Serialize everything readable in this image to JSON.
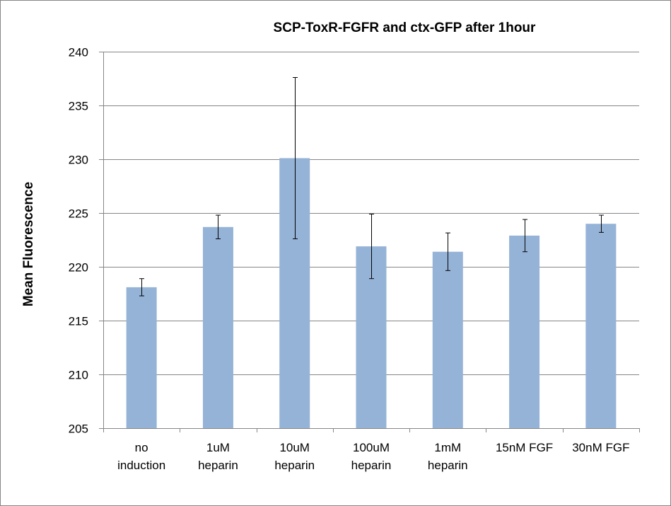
{
  "chart_data": {
    "type": "bar",
    "title": "SCP-ToxR-FGFR and ctx-GFP  after 1hour",
    "xlabel": "",
    "ylabel": "Mean Fluorescence",
    "ylim": [
      205,
      240
    ],
    "yticks": [
      205,
      210,
      215,
      220,
      225,
      230,
      235,
      240
    ],
    "grid": true,
    "legend": "none",
    "bar_color": "#95b3d7",
    "categories": [
      [
        "no",
        "induction"
      ],
      [
        "1uM",
        "heparin"
      ],
      [
        "10uM",
        "heparin"
      ],
      [
        "100uM",
        "heparin"
      ],
      [
        "1mM",
        "heparin"
      ],
      [
        "15nM FGF"
      ],
      [
        "30nM FGF"
      ]
    ],
    "series": [
      {
        "values": [
          218.1,
          223.7,
          230.1,
          221.9,
          221.4,
          222.9,
          224.0
        ],
        "error": [
          0.8,
          1.1,
          7.5,
          3.0,
          1.75,
          1.5,
          0.8
        ]
      }
    ]
  }
}
